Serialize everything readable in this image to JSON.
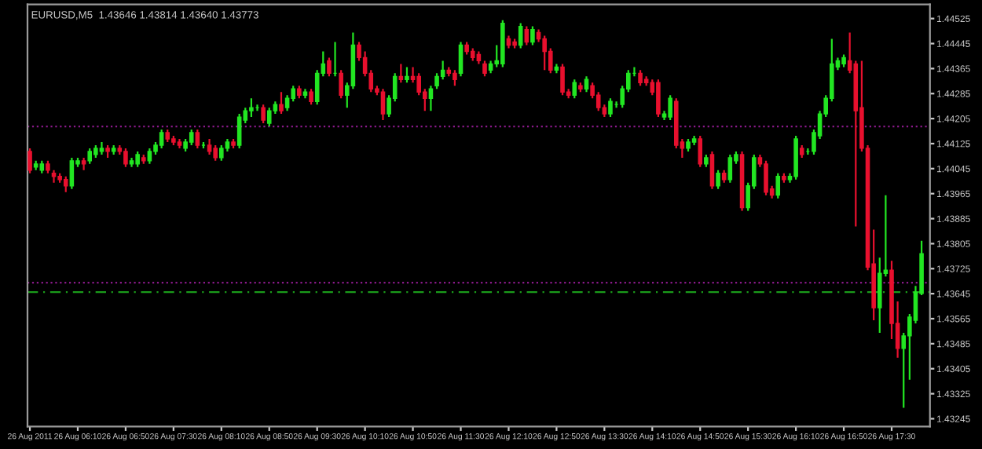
{
  "chart_data": {
    "type": "candlestick",
    "title": "EURUSD,M5  1.43646 1.43814 1.43640 1.43773",
    "x": [
      "2011-08-26T05:30",
      "2011-08-26T05:35",
      "2011-08-26T05:40",
      "2011-08-26T05:45",
      "2011-08-26T05:50",
      "2011-08-26T05:55",
      "2011-08-26T06:00",
      "2011-08-26T06:05",
      "2011-08-26T06:10",
      "2011-08-26T06:15",
      "2011-08-26T06:20",
      "2011-08-26T06:25",
      "2011-08-26T06:30",
      "2011-08-26T06:35",
      "2011-08-26T06:40",
      "2011-08-26T06:45",
      "2011-08-26T06:50",
      "2011-08-26T06:55",
      "2011-08-26T07:00",
      "2011-08-26T07:05",
      "2011-08-26T07:10",
      "2011-08-26T07:15",
      "2011-08-26T07:20",
      "2011-08-26T07:25",
      "2011-08-26T07:30",
      "2011-08-26T07:35",
      "2011-08-26T07:40",
      "2011-08-26T07:45",
      "2011-08-26T07:50",
      "2011-08-26T07:55",
      "2011-08-26T08:00",
      "2011-08-26T08:05",
      "2011-08-26T08:10",
      "2011-08-26T08:15",
      "2011-08-26T08:20",
      "2011-08-26T08:25",
      "2011-08-26T08:30",
      "2011-08-26T08:35",
      "2011-08-26T08:40",
      "2011-08-26T08:45",
      "2011-08-26T08:50",
      "2011-08-26T08:55",
      "2011-08-26T09:00",
      "2011-08-26T09:05",
      "2011-08-26T09:10",
      "2011-08-26T09:15",
      "2011-08-26T09:20",
      "2011-08-26T09:25",
      "2011-08-26T09:30",
      "2011-08-26T09:35",
      "2011-08-26T09:40",
      "2011-08-26T09:45",
      "2011-08-26T09:50",
      "2011-08-26T09:55",
      "2011-08-26T10:00",
      "2011-08-26T10:05",
      "2011-08-26T10:10",
      "2011-08-26T10:15",
      "2011-08-26T10:20",
      "2011-08-26T10:25",
      "2011-08-26T10:30",
      "2011-08-26T10:35",
      "2011-08-26T10:40",
      "2011-08-26T10:45",
      "2011-08-26T10:50",
      "2011-08-26T10:55",
      "2011-08-26T11:00",
      "2011-08-26T11:05",
      "2011-08-26T11:10",
      "2011-08-26T11:15",
      "2011-08-26T11:20",
      "2011-08-26T11:25",
      "2011-08-26T11:30",
      "2011-08-26T11:35",
      "2011-08-26T11:40",
      "2011-08-26T11:45",
      "2011-08-26T11:50",
      "2011-08-26T11:55",
      "2011-08-26T12:00",
      "2011-08-26T12:05",
      "2011-08-26T12:10",
      "2011-08-26T12:15",
      "2011-08-26T12:20",
      "2011-08-26T12:25",
      "2011-08-26T12:30",
      "2011-08-26T12:35",
      "2011-08-26T12:40",
      "2011-08-26T12:45",
      "2011-08-26T12:50",
      "2011-08-26T12:55",
      "2011-08-26T13:00",
      "2011-08-26T13:05",
      "2011-08-26T13:10",
      "2011-08-26T13:15",
      "2011-08-26T13:20",
      "2011-08-26T13:25",
      "2011-08-26T13:30",
      "2011-08-26T13:35",
      "2011-08-26T13:40",
      "2011-08-26T13:45",
      "2011-08-26T13:50",
      "2011-08-26T13:55",
      "2011-08-26T14:00",
      "2011-08-26T14:05",
      "2011-08-26T14:10",
      "2011-08-26T14:15",
      "2011-08-26T14:20",
      "2011-08-26T14:25",
      "2011-08-26T14:30",
      "2011-08-26T14:35",
      "2011-08-26T14:40",
      "2011-08-26T14:45",
      "2011-08-26T14:50",
      "2011-08-26T14:55",
      "2011-08-26T15:00",
      "2011-08-26T15:05",
      "2011-08-26T15:10",
      "2011-08-26T15:15",
      "2011-08-26T15:20",
      "2011-08-26T15:25",
      "2011-08-26T15:30",
      "2011-08-26T15:35",
      "2011-08-26T15:40",
      "2011-08-26T15:45",
      "2011-08-26T15:50",
      "2011-08-26T15:55",
      "2011-08-26T16:00",
      "2011-08-26T16:05",
      "2011-08-26T16:10",
      "2011-08-26T16:15",
      "2011-08-26T16:20",
      "2011-08-26T16:25",
      "2011-08-26T16:30",
      "2011-08-26T16:35",
      "2011-08-26T16:40",
      "2011-08-26T16:45",
      "2011-08-26T16:50",
      "2011-08-26T16:55",
      "2011-08-26T17:00",
      "2011-08-26T17:05",
      "2011-08-26T17:10",
      "2011-08-26T17:15",
      "2011-08-26T17:20",
      "2011-08-26T17:25",
      "2011-08-26T17:30",
      "2011-08-26T17:35",
      "2011-08-26T17:40",
      "2011-08-26T17:45",
      "2011-08-26T17:50",
      "2011-08-26T17:55"
    ],
    "ohlc": [
      [
        1.441,
        1.4411,
        1.4403,
        1.4404
      ],
      [
        1.4405,
        1.4407,
        1.4404,
        1.4406
      ],
      [
        1.4404,
        1.4407,
        1.4403,
        1.4406
      ],
      [
        1.4406,
        1.4407,
        1.4403,
        1.4404
      ],
      [
        1.4403,
        1.4404,
        1.44,
        1.4402
      ],
      [
        1.4402,
        1.4403,
        1.44,
        1.4401
      ],
      [
        1.4401,
        1.4402,
        1.4397,
        1.4399
      ],
      [
        1.4399,
        1.4408,
        1.4398,
        1.4407
      ],
      [
        1.4406,
        1.4408,
        1.4405,
        1.4407
      ],
      [
        1.4407,
        1.4408,
        1.4404,
        1.4406
      ],
      [
        1.4407,
        1.4411,
        1.4406,
        1.441
      ],
      [
        1.4409,
        1.4412,
        1.4408,
        1.4411
      ],
      [
        1.441,
        1.4413,
        1.4409,
        1.4411
      ],
      [
        1.4411,
        1.4412,
        1.4408,
        1.441
      ],
      [
        1.441,
        1.4412,
        1.4409,
        1.4411
      ],
      [
        1.4411,
        1.4412,
        1.4409,
        1.441
      ],
      [
        1.441,
        1.4411,
        1.4405,
        1.4406
      ],
      [
        1.4406,
        1.4408,
        1.4405,
        1.4407
      ],
      [
        1.4406,
        1.441,
        1.4405,
        1.4409
      ],
      [
        1.4408,
        1.4409,
        1.4406,
        1.4407
      ],
      [
        1.4407,
        1.4411,
        1.4406,
        1.441
      ],
      [
        1.441,
        1.4413,
        1.4409,
        1.4412
      ],
      [
        1.4412,
        1.4417,
        1.4411,
        1.4416
      ],
      [
        1.4416,
        1.4417,
        1.4413,
        1.4414
      ],
      [
        1.4414,
        1.4415,
        1.4412,
        1.4413
      ],
      [
        1.4413,
        1.4414,
        1.4411,
        1.4412
      ],
      [
        1.4411,
        1.4414,
        1.441,
        1.4413
      ],
      [
        1.4413,
        1.4417,
        1.4412,
        1.4416
      ],
      [
        1.4416,
        1.4417,
        1.4411,
        1.4412
      ],
      [
        1.4412,
        1.4413,
        1.4411,
        1.4412
      ],
      [
        1.4412,
        1.4414,
        1.4409,
        1.441
      ],
      [
        1.4411,
        1.4412,
        1.4407,
        1.4408
      ],
      [
        1.4408,
        1.4412,
        1.4407,
        1.4411
      ],
      [
        1.4411,
        1.4414,
        1.441,
        1.4413
      ],
      [
        1.4413,
        1.4414,
        1.4411,
        1.4412
      ],
      [
        1.4412,
        1.4422,
        1.4411,
        1.4421
      ],
      [
        1.442,
        1.4424,
        1.4419,
        1.4423
      ],
      [
        1.4423,
        1.4427,
        1.4421,
        1.4424
      ],
      [
        1.4424,
        1.4425,
        1.4423,
        1.4424
      ],
      [
        1.4424,
        1.4425,
        1.4419,
        1.442
      ],
      [
        1.4419,
        1.4424,
        1.4418,
        1.4423
      ],
      [
        1.4423,
        1.4426,
        1.4422,
        1.4425
      ],
      [
        1.4425,
        1.4429,
        1.4422,
        1.4423
      ],
      [
        1.4424,
        1.4428,
        1.4423,
        1.4427
      ],
      [
        1.4427,
        1.4431,
        1.4426,
        1.443
      ],
      [
        1.443,
        1.4431,
        1.4427,
        1.4428
      ],
      [
        1.4428,
        1.443,
        1.4427,
        1.4429
      ],
      [
        1.4429,
        1.443,
        1.4425,
        1.4426
      ],
      [
        1.4426,
        1.4436,
        1.4425,
        1.4435
      ],
      [
        1.4435,
        1.4442,
        1.4434,
        1.4438
      ],
      [
        1.4439,
        1.444,
        1.4434,
        1.4435
      ],
      [
        1.4435,
        1.4445,
        1.4434,
        1.4435
      ],
      [
        1.4435,
        1.4436,
        1.4427,
        1.4428
      ],
      [
        1.4428,
        1.4432,
        1.4424,
        1.4431
      ],
      [
        1.4431,
        1.4448,
        1.443,
        1.4444
      ],
      [
        1.4444,
        1.4445,
        1.4439,
        1.444
      ],
      [
        1.444,
        1.4442,
        1.4434,
        1.4435
      ],
      [
        1.4435,
        1.4436,
        1.4429,
        1.443
      ],
      [
        1.443,
        1.4431,
        1.4428,
        1.4429
      ],
      [
        1.4429,
        1.443,
        1.442,
        1.4422
      ],
      [
        1.4422,
        1.4428,
        1.4421,
        1.4427
      ],
      [
        1.4427,
        1.4435,
        1.4426,
        1.4434
      ],
      [
        1.4434,
        1.4438,
        1.4432,
        1.4433
      ],
      [
        1.4433,
        1.4437,
        1.4432,
        1.4434
      ],
      [
        1.4434,
        1.4437,
        1.4432,
        1.4433
      ],
      [
        1.4434,
        1.4435,
        1.4428,
        1.4429
      ],
      [
        1.4429,
        1.443,
        1.4423,
        1.4427
      ],
      [
        1.4427,
        1.4431,
        1.4423,
        1.443
      ],
      [
        1.4431,
        1.4435,
        1.443,
        1.4434
      ],
      [
        1.4434,
        1.4439,
        1.4433,
        1.4436
      ],
      [
        1.4436,
        1.4437,
        1.4434,
        1.4435
      ],
      [
        1.4435,
        1.4436,
        1.4431,
        1.4433
      ],
      [
        1.4435,
        1.4445,
        1.4434,
        1.4444
      ],
      [
        1.4444,
        1.4445,
        1.4441,
        1.4442
      ],
      [
        1.4442,
        1.4443,
        1.4439,
        1.444
      ],
      [
        1.4441,
        1.4442,
        1.4438,
        1.4439
      ],
      [
        1.4438,
        1.4439,
        1.4434,
        1.4435
      ],
      [
        1.4436,
        1.4439,
        1.4435,
        1.4438
      ],
      [
        1.4438,
        1.4444,
        1.4437,
        1.4439
      ],
      [
        1.4438,
        1.4452,
        1.4437,
        1.4451
      ],
      [
        1.4446,
        1.4447,
        1.4443,
        1.4444
      ],
      [
        1.4445,
        1.4446,
        1.4443,
        1.4444
      ],
      [
        1.4444,
        1.4451,
        1.4443,
        1.445
      ],
      [
        1.4449,
        1.445,
        1.4444,
        1.4445
      ],
      [
        1.4445,
        1.445,
        1.4444,
        1.4449
      ],
      [
        1.4448,
        1.4449,
        1.4445,
        1.4446
      ],
      [
        1.4446,
        1.4447,
        1.4436,
        1.4442
      ],
      [
        1.4442,
        1.4443,
        1.4435,
        1.4436
      ],
      [
        1.4436,
        1.4438,
        1.4435,
        1.4437
      ],
      [
        1.4437,
        1.4438,
        1.4428,
        1.4429
      ],
      [
        1.4429,
        1.443,
        1.4427,
        1.4428
      ],
      [
        1.4428,
        1.4433,
        1.4427,
        1.4432
      ],
      [
        1.4431,
        1.4432,
        1.4429,
        1.443
      ],
      [
        1.443,
        1.4434,
        1.4429,
        1.4433
      ],
      [
        1.4431,
        1.4432,
        1.4427,
        1.4428
      ],
      [
        1.4428,
        1.4429,
        1.4423,
        1.4424
      ],
      [
        1.4424,
        1.4425,
        1.4421,
        1.4422
      ],
      [
        1.4422,
        1.4427,
        1.4421,
        1.4426
      ],
      [
        1.4425,
        1.4426,
        1.4424,
        1.4425
      ],
      [
        1.4425,
        1.4431,
        1.4424,
        1.443
      ],
      [
        1.443,
        1.4436,
        1.4429,
        1.4435
      ],
      [
        1.4435,
        1.4437,
        1.4434,
        1.4435
      ],
      [
        1.4435,
        1.4436,
        1.4431,
        1.4432
      ],
      [
        1.4433,
        1.4434,
        1.4431,
        1.4432
      ],
      [
        1.4432,
        1.4433,
        1.4428,
        1.4429
      ],
      [
        1.4432,
        1.4433,
        1.4421,
        1.4422
      ],
      [
        1.4421,
        1.4423,
        1.442,
        1.4422
      ],
      [
        1.4421,
        1.4428,
        1.442,
        1.4427
      ],
      [
        1.4426,
        1.4427,
        1.4411,
        1.4412
      ],
      [
        1.4413,
        1.4414,
        1.4408,
        1.4411
      ],
      [
        1.4411,
        1.4414,
        1.441,
        1.4413
      ],
      [
        1.4413,
        1.4415,
        1.4412,
        1.4414
      ],
      [
        1.4414,
        1.4415,
        1.4405,
        1.4406
      ],
      [
        1.4406,
        1.4409,
        1.4405,
        1.4408
      ],
      [
        1.4409,
        1.441,
        1.4398,
        1.4399
      ],
      [
        1.4399,
        1.4404,
        1.4398,
        1.4403
      ],
      [
        1.4403,
        1.4404,
        1.44,
        1.4401
      ],
      [
        1.4401,
        1.4409,
        1.44,
        1.4408
      ],
      [
        1.4407,
        1.441,
        1.4406,
        1.4409
      ],
      [
        1.4409,
        1.441,
        1.4391,
        1.4392
      ],
      [
        1.4392,
        1.44,
        1.4391,
        1.4399
      ],
      [
        1.4399,
        1.4409,
        1.4398,
        1.4408
      ],
      [
        1.4408,
        1.4409,
        1.4405,
        1.4406
      ],
      [
        1.4406,
        1.4407,
        1.4396,
        1.4397
      ],
      [
        1.4398,
        1.4399,
        1.4395,
        1.4396
      ],
      [
        1.4396,
        1.4403,
        1.4395,
        1.4402
      ],
      [
        1.4402,
        1.4403,
        1.44,
        1.4401
      ],
      [
        1.4401,
        1.4403,
        1.44,
        1.4402
      ],
      [
        1.4402,
        1.4415,
        1.4401,
        1.4414
      ],
      [
        1.4411,
        1.4412,
        1.4408,
        1.4409
      ],
      [
        1.441,
        1.4411,
        1.4409,
        1.441
      ],
      [
        1.441,
        1.4417,
        1.4409,
        1.4416
      ],
      [
        1.4415,
        1.4423,
        1.4414,
        1.4422
      ],
      [
        1.4422,
        1.4428,
        1.4421,
        1.4427
      ],
      [
        1.4427,
        1.4446,
        1.4426,
        1.4438
      ],
      [
        1.4437,
        1.444,
        1.4436,
        1.4439
      ],
      [
        1.4438,
        1.4441,
        1.4437,
        1.444
      ],
      [
        1.4439,
        1.4448,
        1.4435,
        1.4436
      ],
      [
        1.4438,
        1.4439,
        1.4386,
        1.4423
      ],
      [
        1.4424,
        1.4439,
        1.441,
        1.4411
      ],
      [
        1.4411,
        1.4412,
        1.4372,
        1.4373
      ],
      [
        1.4374,
        1.4385,
        1.4356,
        1.436
      ],
      [
        1.436,
        1.4376,
        1.4352,
        1.4371
      ],
      [
        1.4371,
        1.4396,
        1.437,
        1.4372
      ],
      [
        1.4372,
        1.4375,
        1.435,
        1.4355
      ],
      [
        1.4355,
        1.4362,
        1.4344,
        1.4347
      ],
      [
        1.4347,
        1.4352,
        1.4328,
        1.4351
      ],
      [
        1.4351,
        1.4358,
        1.4337,
        1.4357
      ],
      [
        1.4356,
        1.4367,
        1.4355,
        1.4365
      ],
      [
        1.43646,
        1.43814,
        1.4364,
        1.43773
      ]
    ],
    "colors": [
      "#e8102e",
      "#22e622",
      "#22e622",
      "#e8102e",
      "#e8102e",
      "#e8102e",
      "#e8102e",
      "#22e622",
      "#22e622",
      "#e8102e",
      "#22e622",
      "#22e622",
      "#22e622",
      "#e8102e",
      "#22e622",
      "#e8102e",
      "#e8102e",
      "#22e622",
      "#22e622",
      "#e8102e",
      "#22e622",
      "#22e622",
      "#22e622",
      "#e8102e",
      "#e8102e",
      "#e8102e",
      "#22e622",
      "#22e622",
      "#e8102e",
      "#22e622",
      "#e8102e",
      "#e8102e",
      "#22e622",
      "#22e622",
      "#e8102e",
      "#22e622",
      "#22e622",
      "#22e622",
      "#22e622",
      "#e8102e",
      "#22e622",
      "#22e622",
      "#e8102e",
      "#22e622",
      "#22e622",
      "#e8102e",
      "#22e622",
      "#e8102e",
      "#22e622",
      "#22e622",
      "#e8102e",
      "#22e622",
      "#e8102e",
      "#22e622",
      "#22e622",
      "#e8102e",
      "#e8102e",
      "#e8102e",
      "#e8102e",
      "#e8102e",
      "#22e622",
      "#22e622",
      "#e8102e",
      "#22e622",
      "#e8102e",
      "#e8102e",
      "#e8102e",
      "#22e622",
      "#22e622",
      "#22e622",
      "#e8102e",
      "#e8102e",
      "#22e622",
      "#e8102e",
      "#e8102e",
      "#e8102e",
      "#e8102e",
      "#22e622",
      "#22e622",
      "#22e622",
      "#e8102e",
      "#e8102e",
      "#22e622",
      "#e8102e",
      "#22e622",
      "#e8102e",
      "#e8102e",
      "#e8102e",
      "#22e622",
      "#e8102e",
      "#e8102e",
      "#22e622",
      "#e8102e",
      "#22e622",
      "#e8102e",
      "#e8102e",
      "#e8102e",
      "#22e622",
      "#22e622",
      "#22e622",
      "#22e622",
      "#22e622",
      "#e8102e",
      "#e8102e",
      "#e8102e",
      "#e8102e",
      "#22e622",
      "#22e622",
      "#e8102e",
      "#e8102e",
      "#22e622",
      "#22e622",
      "#e8102e",
      "#22e622",
      "#e8102e",
      "#22e622",
      "#e8102e",
      "#22e622",
      "#22e622",
      "#e8102e",
      "#22e622",
      "#22e622",
      "#e8102e",
      "#e8102e",
      "#e8102e",
      "#22e622",
      "#e8102e",
      "#22e622",
      "#22e622",
      "#e8102e",
      "#22e622",
      "#22e622",
      "#22e622",
      "#22e622",
      "#22e622",
      "#22e622",
      "#22e622",
      "#e8102e",
      "#e8102e",
      "#e8102e",
      "#e8102e",
      "#e8102e",
      "#22e622",
      "#22e622",
      "#e8102e",
      "#e8102e",
      "#22e622",
      "#22e622",
      "#22e622",
      "#22e622"
    ],
    "xlim": [
      "2011-08-26T05:28",
      "2011-08-26T18:02"
    ],
    "xticks": [
      {
        "value": "2011-08-26T05:30",
        "label": "26 Aug 2011"
      },
      {
        "value": "2011-08-26T06:10",
        "label": "26 Aug 06:10"
      },
      {
        "value": "2011-08-26T06:50",
        "label": "26 Aug 06:50"
      },
      {
        "value": "2011-08-26T07:30",
        "label": "26 Aug 07:30"
      },
      {
        "value": "2011-08-26T08:10",
        "label": "26 Aug 08:10"
      },
      {
        "value": "2011-08-26T08:50",
        "label": "26 Aug 08:50"
      },
      {
        "value": "2011-08-26T09:30",
        "label": "26 Aug 09:30"
      },
      {
        "value": "2011-08-26T10:10",
        "label": "26 Aug 10:10"
      },
      {
        "value": "2011-08-26T10:50",
        "label": "26 Aug 10:50"
      },
      {
        "value": "2011-08-26T11:30",
        "label": "26 Aug 11:30"
      },
      {
        "value": "2011-08-26T12:10",
        "label": "26 Aug 12:10"
      },
      {
        "value": "2011-08-26T12:50",
        "label": "26 Aug 12:50"
      },
      {
        "value": "2011-08-26T13:30",
        "label": "26 Aug 13:30"
      },
      {
        "value": "2011-08-26T14:10",
        "label": "26 Aug 14:10"
      },
      {
        "value": "2011-08-26T14:50",
        "label": "26 Aug 14:50"
      },
      {
        "value": "2011-08-26T15:30",
        "label": "26 Aug 15:30"
      },
      {
        "value": "2011-08-26T16:10",
        "label": "26 Aug 16:10"
      },
      {
        "value": "2011-08-26T16:50",
        "label": "26 Aug 16:50"
      },
      {
        "value": "2011-08-26T17:30",
        "label": "26 Aug 17:30"
      }
    ],
    "ylim": [
      1.4322,
      1.4457
    ],
    "yticks": [
      1.43245,
      1.43325,
      1.43405,
      1.43485,
      1.43565,
      1.43645,
      1.43725,
      1.43805,
      1.43885,
      1.43965,
      1.44045,
      1.44125,
      1.44205,
      1.44285,
      1.44365,
      1.44445,
      1.44525
    ],
    "ref_lines": [
      {
        "axis": "y",
        "value": 1.4418,
        "color": "#8a1a8a",
        "line_style": "dotted"
      },
      {
        "axis": "y",
        "value": 1.4368,
        "color": "#8a1a8a",
        "line_style": "dotted"
      },
      {
        "axis": "y",
        "value": 1.4365,
        "color": "#1a9a1a",
        "line_style": "dashed"
      }
    ],
    "grid": false,
    "legend": false
  }
}
